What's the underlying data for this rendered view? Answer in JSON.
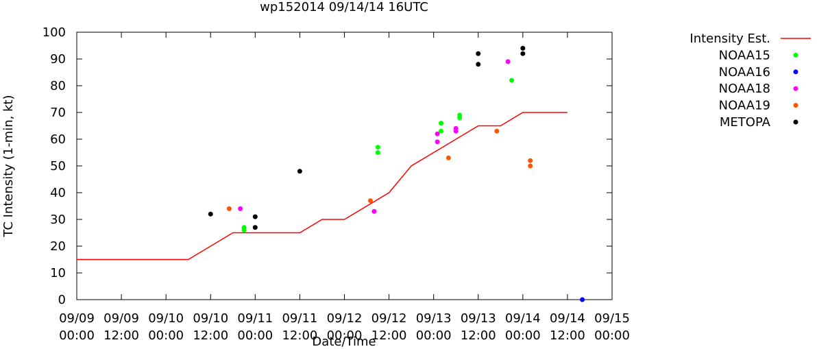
{
  "chart_data": {
    "type": "scatter",
    "title": "wp152014 09/14/14 16UTC",
    "xlabel": "Date/Time",
    "ylabel": "TC Intensity (1-min, kt)",
    "xlim": [
      "09/09 00:00",
      "09/15 00:00"
    ],
    "ylim": [
      0,
      100
    ],
    "grid": false,
    "legend_position": "outside-right",
    "x_ticks": [
      {
        "date": "09/09",
        "time": "00:00",
        "day": 9,
        "hour": 0
      },
      {
        "date": "09/09",
        "time": "12:00",
        "day": 9,
        "hour": 12
      },
      {
        "date": "09/10",
        "time": "00:00",
        "day": 10,
        "hour": 0
      },
      {
        "date": "09/10",
        "time": "12:00",
        "day": 10,
        "hour": 12
      },
      {
        "date": "09/11",
        "time": "00:00",
        "day": 11,
        "hour": 0
      },
      {
        "date": "09/11",
        "time": "12:00",
        "day": 11,
        "hour": 12
      },
      {
        "date": "09/12",
        "time": "00:00",
        "day": 12,
        "hour": 0
      },
      {
        "date": "09/12",
        "time": "12:00",
        "day": 12,
        "hour": 12
      },
      {
        "date": "09/13",
        "time": "00:00",
        "day": 13,
        "hour": 0
      },
      {
        "date": "09/13",
        "time": "12:00",
        "day": 13,
        "hour": 12
      },
      {
        "date": "09/14",
        "time": "00:00",
        "day": 14,
        "hour": 0
      },
      {
        "date": "09/14",
        "time": "12:00",
        "day": 14,
        "hour": 12
      },
      {
        "date": "09/15",
        "time": "00:00",
        "day": 15,
        "hour": 0
      }
    ],
    "y_ticks": [
      0,
      10,
      20,
      30,
      40,
      50,
      60,
      70,
      80,
      90,
      100
    ],
    "series": [
      {
        "name": "Intensity Est.",
        "kind": "line",
        "color": "#ff0000",
        "points": [
          {
            "day": 9,
            "hour": 0,
            "y": 15
          },
          {
            "day": 10,
            "hour": 6,
            "y": 15
          },
          {
            "day": 10,
            "hour": 12,
            "y": 20
          },
          {
            "day": 10,
            "hour": 18,
            "y": 25
          },
          {
            "day": 11,
            "hour": 12,
            "y": 25
          },
          {
            "day": 11,
            "hour": 18,
            "y": 30
          },
          {
            "day": 12,
            "hour": 0,
            "y": 30
          },
          {
            "day": 12,
            "hour": 12,
            "y": 40
          },
          {
            "day": 12,
            "hour": 18,
            "y": 50
          },
          {
            "day": 13,
            "hour": 12,
            "y": 65
          },
          {
            "day": 13,
            "hour": 18,
            "y": 65
          },
          {
            "day": 14,
            "hour": 0,
            "y": 70
          },
          {
            "day": 14,
            "hour": 12,
            "y": 70
          }
        ]
      },
      {
        "name": "NOAA15",
        "kind": "points",
        "color": "#00ff00",
        "points": [
          {
            "day": 10,
            "hour": 21,
            "y": 27
          },
          {
            "day": 10,
            "hour": 21,
            "y": 26
          },
          {
            "day": 12,
            "hour": 9,
            "y": 57
          },
          {
            "day": 12,
            "hour": 9,
            "y": 55
          },
          {
            "day": 13,
            "hour": 2,
            "y": 66
          },
          {
            "day": 13,
            "hour": 2,
            "y": 63
          },
          {
            "day": 13,
            "hour": 7,
            "y": 69
          },
          {
            "day": 13,
            "hour": 7,
            "y": 68
          },
          {
            "day": 13,
            "hour": 21,
            "y": 82
          }
        ]
      },
      {
        "name": "NOAA16",
        "kind": "points",
        "color": "#0000ff",
        "points": [
          {
            "day": 14,
            "hour": 16,
            "y": 0
          }
        ]
      },
      {
        "name": "NOAA18",
        "kind": "points",
        "color": "#ff00ff",
        "points": [
          {
            "day": 10,
            "hour": 20,
            "y": 34
          },
          {
            "day": 12,
            "hour": 8,
            "y": 33
          },
          {
            "day": 13,
            "hour": 1,
            "y": 62
          },
          {
            "day": 13,
            "hour": 1,
            "y": 59
          },
          {
            "day": 13,
            "hour": 6,
            "y": 64
          },
          {
            "day": 13,
            "hour": 6,
            "y": 63
          },
          {
            "day": 13,
            "hour": 20,
            "y": 89
          }
        ]
      },
      {
        "name": "NOAA19",
        "kind": "points",
        "color": "#ff5500",
        "points": [
          {
            "day": 10,
            "hour": 17,
            "y": 34
          },
          {
            "day": 12,
            "hour": 7,
            "y": 37
          },
          {
            "day": 13,
            "hour": 4,
            "y": 53
          },
          {
            "day": 13,
            "hour": 17,
            "y": 63
          },
          {
            "day": 14,
            "hour": 2,
            "y": 52
          },
          {
            "day": 14,
            "hour": 2,
            "y": 50
          }
        ]
      },
      {
        "name": "METOPA",
        "kind": "points",
        "color": "#000000",
        "points": [
          {
            "day": 10,
            "hour": 12,
            "y": 32
          },
          {
            "day": 11,
            "hour": 0,
            "y": 31
          },
          {
            "day": 11,
            "hour": 0,
            "y": 27
          },
          {
            "day": 11,
            "hour": 12,
            "y": 48
          },
          {
            "day": 13,
            "hour": 12,
            "y": 92
          },
          {
            "day": 13,
            "hour": 12,
            "y": 88
          },
          {
            "day": 14,
            "hour": 0,
            "y": 94
          },
          {
            "day": 14,
            "hour": 0,
            "y": 92
          }
        ]
      }
    ]
  }
}
